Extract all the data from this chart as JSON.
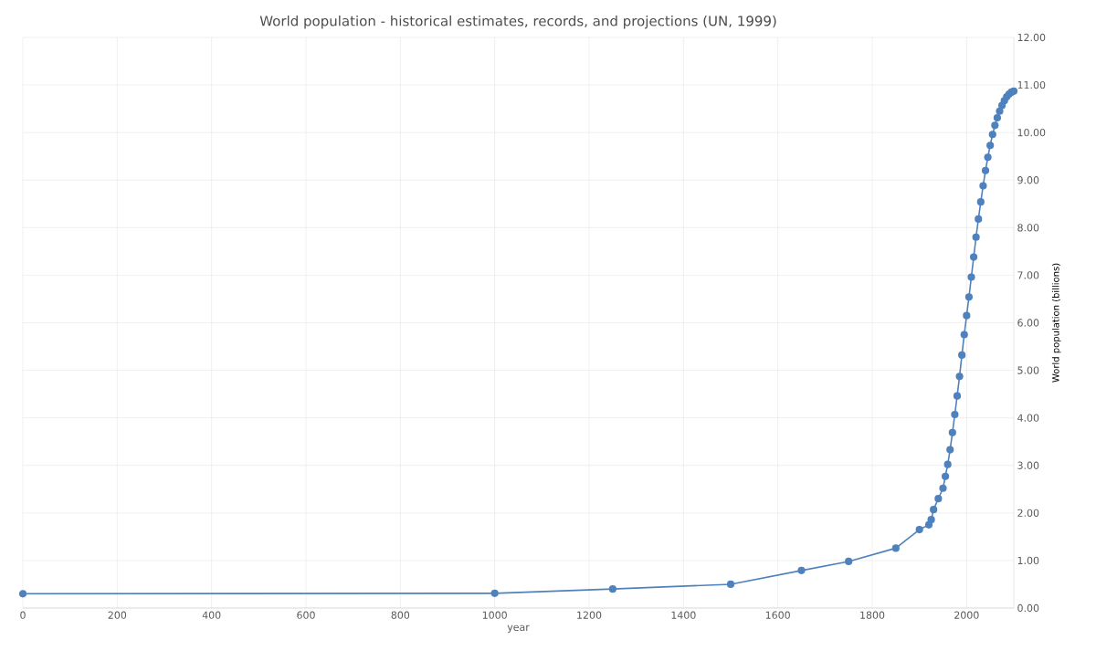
{
  "chart_data": {
    "type": "line",
    "title": "World population - historical estimates, records, and projections (UN, 1999)",
    "xlabel": "year",
    "ylabel": "World population (billions)",
    "x": [
      0,
      1000,
      1250,
      1500,
      1650,
      1750,
      1850,
      1900,
      1920,
      1925,
      1930,
      1940,
      1950,
      1955,
      1960,
      1965,
      1970,
      1975,
      1980,
      1985,
      1990,
      1995,
      2000,
      2005,
      2010,
      2015,
      2020,
      2025,
      2030,
      2035,
      2040,
      2045,
      2050,
      2055,
      2060,
      2065,
      2070,
      2075,
      2080,
      2085,
      2090,
      2095,
      2100
    ],
    "series": [
      {
        "color": "#4f81bd",
        "values": [
          0.3,
          0.31,
          0.4,
          0.5,
          0.79,
          0.98,
          1.26,
          1.65,
          1.75,
          1.86,
          2.07,
          2.3,
          2.52,
          2.77,
          3.02,
          3.33,
          3.69,
          4.07,
          4.46,
          4.87,
          5.32,
          5.75,
          6.15,
          6.54,
          6.96,
          7.38,
          7.8,
          8.18,
          8.54,
          8.88,
          9.2,
          9.48,
          9.73,
          9.96,
          10.15,
          10.31,
          10.45,
          10.57,
          10.67,
          10.75,
          10.81,
          10.85,
          10.87
        ]
      }
    ],
    "xlim": [
      0,
      2100
    ],
    "ylim": [
      0,
      12
    ],
    "xticks": [
      0,
      200,
      400,
      600,
      800,
      1000,
      1200,
      1400,
      1600,
      1800,
      2000
    ],
    "yticks": [
      {
        "value": 0,
        "label": "0.00"
      },
      {
        "value": 1,
        "label": "1.00"
      },
      {
        "value": 2,
        "label": "2.00"
      },
      {
        "value": 3,
        "label": "3.00"
      },
      {
        "value": 4,
        "label": "4.00"
      },
      {
        "value": 5,
        "label": "5.00"
      },
      {
        "value": 6,
        "label": "6.00"
      },
      {
        "value": 7,
        "label": "7.00"
      },
      {
        "value": 8,
        "label": "8.00"
      },
      {
        "value": 9,
        "label": "9.00"
      },
      {
        "value": 10,
        "label": "10.00"
      },
      {
        "value": 11,
        "label": "11.00"
      },
      {
        "value": 12,
        "label": "12.00"
      }
    ],
    "grid": true,
    "marker": "circle",
    "line_style": "solid"
  }
}
